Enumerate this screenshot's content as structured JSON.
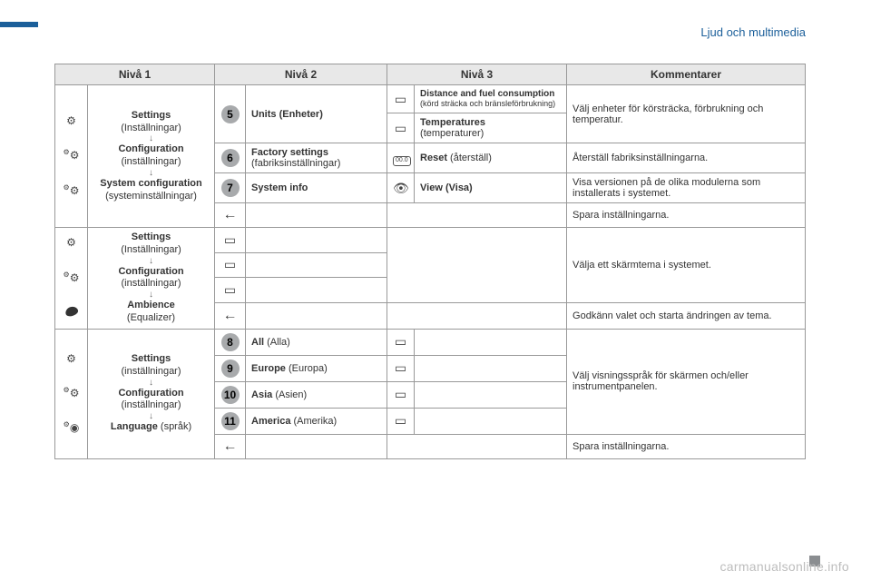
{
  "page": {
    "title": "Ljud och multimedia",
    "watermark": "carmanualsonline.info"
  },
  "headers": {
    "level1": "Nivå 1",
    "level2": "Nivå 2",
    "level3": "Nivå 3",
    "comments": "Kommentarer"
  },
  "section1": {
    "path": {
      "settings_bold": "Settings",
      "settings_sub": "(Inställningar)",
      "config_bold": "Configuration",
      "config_sub": " (inställningar)",
      "sysconf_bold": "System configuration",
      "sysconf_sub": "(systeminställningar)"
    },
    "rows": {
      "units": {
        "num": "5",
        "label": "Units (Enheter)",
        "distance_bold": "Distance and fuel consumption",
        "distance_sub": "(körd sträcka och bränsleförbrukning)",
        "temp_bold": "Temperatures",
        "temp_sub": "(temperaturer)",
        "comment": "Välj enheter för körsträcka, förbrukning och temperatur."
      },
      "factory": {
        "num": "6",
        "label_bold": "Factory settings",
        "label_sub": "(fabriksinställningar)",
        "reset_bold": "Reset",
        "reset_sub": " (återställ)",
        "comment": "Återställ fabriksinställningarna."
      },
      "sysinfo": {
        "num": "7",
        "label": "System info",
        "view": "View (Visa)",
        "comment": "Visa versionen på de olika modulerna som installerats i systemet."
      },
      "save": {
        "comment": "Spara inställningarna."
      }
    }
  },
  "section2": {
    "path": {
      "settings_bold": "Settings",
      "settings_sub": "(Inställningar)",
      "config_bold": "Configuration",
      "config_sub": " (inställningar)",
      "amb_bold": "Ambience",
      "amb_sub": "(Equalizer)"
    },
    "select_comment": "Välja ett skärmtema i systemet.",
    "approve_comment": "Godkänn valet och starta ändringen av tema."
  },
  "section3": {
    "path": {
      "settings_bold": "Settings",
      "settings_sub": "(inställningar)",
      "config_bold": "Configuration",
      "config_sub": " (inställningar)",
      "lang_bold": "Language",
      "lang_sub": " (språk)"
    },
    "rows": {
      "all": {
        "num": "8",
        "bold": "All",
        "sub": " (Alla)"
      },
      "europe": {
        "num": "9",
        "bold": "Europe",
        "sub": " (Europa)"
      },
      "asia": {
        "num": "10",
        "bold": "Asia",
        "sub": " (Asien)"
      },
      "america": {
        "num": "11",
        "bold": "America",
        "sub": " (Amerika)"
      }
    },
    "select_comment": "Välj visningsspråk för skärmen och/eller instrumentpanelen.",
    "save_comment": "Spara inställningarna."
  }
}
